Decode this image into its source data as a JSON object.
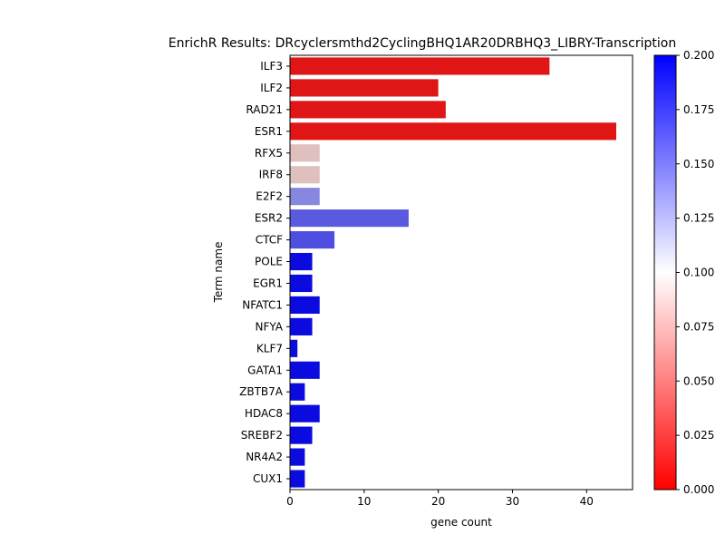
{
  "chart_data": {
    "type": "bar",
    "orientation": "horizontal",
    "title": "EnrichR Results: DRcyclersmthd2CyclingBHQ1AR20DRBHQ3_LIBRY-Transcription",
    "xlabel": "gene count",
    "ylabel": "Term name",
    "xlim": [
      0,
      46.2
    ],
    "x_ticks": [
      0,
      10,
      20,
      30,
      40
    ],
    "categories": [
      "ILF3",
      "ILF2",
      "RAD21",
      "ESR1",
      "RFX5",
      "IRF8",
      "E2F2",
      "ESR2",
      "CTCF",
      "POLE",
      "EGR1",
      "NFATC1",
      "NFYA",
      "KLF7",
      "GATA1",
      "ZBTB7A",
      "HDAC8",
      "SREBF2",
      "NR4A2",
      "CUX1"
    ],
    "values": [
      35,
      20,
      21,
      44,
      4,
      4,
      4,
      16,
      6,
      3,
      3,
      4,
      3,
      1,
      4,
      2,
      4,
      3,
      2,
      2
    ],
    "color_values": [
      0.01,
      0.01,
      0.01,
      0.01,
      0.085,
      0.085,
      0.14,
      0.16,
      0.165,
      0.195,
      0.195,
      0.195,
      0.195,
      0.195,
      0.195,
      0.195,
      0.195,
      0.195,
      0.195,
      0.195
    ],
    "grid": false,
    "colorbar": {
      "min": 0.0,
      "max": 0.2,
      "colormap": "bwr_r",
      "low_color": "#ff0000",
      "mid_color": "#ffffff",
      "high_color": "#0000ff",
      "ticks": [
        "0.000",
        "0.025",
        "0.050",
        "0.075",
        "0.100",
        "0.125",
        "0.150",
        "0.175",
        "0.200"
      ]
    }
  }
}
